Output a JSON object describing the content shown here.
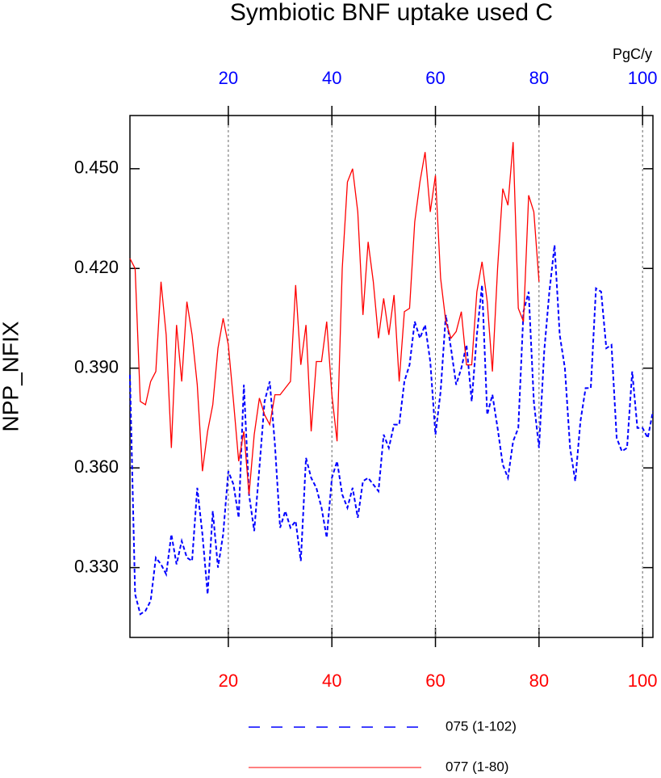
{
  "chart_data": {
    "type": "line",
    "title": "Symbiotic BNF uptake used C",
    "y_label": "NPP_NFIX",
    "ylim": [
      0.309,
      0.466
    ],
    "yticks": [
      {
        "value": 0.33,
        "label": "0.330"
      },
      {
        "value": 0.36,
        "label": "0.360"
      },
      {
        "value": 0.39,
        "label": "0.390"
      },
      {
        "value": 0.42,
        "label": "0.420"
      },
      {
        "value": 0.45,
        "label": "0.450"
      }
    ],
    "xlim": [
      1,
      102
    ],
    "x_axis_bottom": {
      "color": "#ff0000",
      "ticks": [
        20,
        40,
        60,
        80,
        100
      ]
    },
    "x_axis_top": {
      "color": "#0000ff",
      "ticks": [
        20,
        40,
        60,
        80,
        100
      ],
      "unit": "PgC/y"
    },
    "grid": true,
    "legend": "bottom",
    "series": [
      {
        "name": "075 (1-102)",
        "color": "#0000ff",
        "dash": true,
        "x": [
          1,
          2,
          3,
          4,
          5,
          6,
          7,
          8,
          9,
          10,
          11,
          12,
          13,
          14,
          15,
          16,
          17,
          18,
          19,
          20,
          21,
          22,
          23,
          24,
          25,
          26,
          27,
          28,
          29,
          30,
          31,
          32,
          33,
          34,
          35,
          36,
          37,
          38,
          39,
          40,
          41,
          42,
          43,
          44,
          45,
          46,
          47,
          48,
          49,
          50,
          51,
          52,
          53,
          54,
          55,
          56,
          57,
          58,
          59,
          60,
          61,
          62,
          63,
          64,
          65,
          66,
          67,
          68,
          69,
          70,
          71,
          72,
          73,
          74,
          75,
          76,
          77,
          78,
          79,
          80,
          81,
          82,
          83,
          84,
          85,
          86,
          87,
          88,
          89,
          90,
          91,
          92,
          93,
          94,
          95,
          96,
          97,
          98,
          99,
          100,
          101,
          102
        ],
        "values": [
          0.388,
          0.322,
          0.316,
          0.317,
          0.32,
          0.333,
          0.331,
          0.328,
          0.34,
          0.331,
          0.338,
          0.333,
          0.332,
          0.354,
          0.34,
          0.322,
          0.347,
          0.33,
          0.34,
          0.359,
          0.355,
          0.345,
          0.385,
          0.352,
          0.341,
          0.36,
          0.38,
          0.386,
          0.367,
          0.342,
          0.347,
          0.342,
          0.344,
          0.332,
          0.363,
          0.357,
          0.354,
          0.348,
          0.339,
          0.357,
          0.362,
          0.352,
          0.348,
          0.354,
          0.345,
          0.356,
          0.357,
          0.355,
          0.353,
          0.37,
          0.366,
          0.373,
          0.373,
          0.386,
          0.391,
          0.404,
          0.399,
          0.403,
          0.392,
          0.37,
          0.383,
          0.406,
          0.396,
          0.385,
          0.39,
          0.397,
          0.38,
          0.4,
          0.415,
          0.376,
          0.382,
          0.372,
          0.361,
          0.357,
          0.368,
          0.372,
          0.407,
          0.413,
          0.38,
          0.366,
          0.395,
          0.413,
          0.427,
          0.4,
          0.39,
          0.366,
          0.356,
          0.374,
          0.384,
          0.384,
          0.414,
          0.413,
          0.396,
          0.397,
          0.369,
          0.365,
          0.366,
          0.389,
          0.372,
          0.372,
          0.369,
          0.377
        ]
      },
      {
        "name": "077 (1-80)",
        "color": "#ff0000",
        "dash": false,
        "x": [
          1,
          2,
          3,
          4,
          5,
          6,
          7,
          8,
          9,
          10,
          11,
          12,
          13,
          14,
          15,
          16,
          17,
          18,
          19,
          20,
          21,
          22,
          23,
          24,
          25,
          26,
          27,
          28,
          29,
          30,
          31,
          32,
          33,
          34,
          35,
          36,
          37,
          38,
          39,
          40,
          41,
          42,
          43,
          44,
          45,
          46,
          47,
          48,
          49,
          50,
          51,
          52,
          53,
          54,
          55,
          56,
          57,
          58,
          59,
          60,
          61,
          62,
          63,
          64,
          65,
          66,
          67,
          68,
          69,
          70,
          71,
          72,
          73,
          74,
          75,
          76,
          77,
          78,
          79,
          80
        ],
        "values": [
          0.423,
          0.42,
          0.38,
          0.379,
          0.386,
          0.389,
          0.416,
          0.4,
          0.366,
          0.403,
          0.386,
          0.41,
          0.4,
          0.385,
          0.359,
          0.371,
          0.379,
          0.396,
          0.405,
          0.397,
          0.38,
          0.362,
          0.371,
          0.352,
          0.37,
          0.381,
          0.376,
          0.373,
          0.382,
          0.382,
          0.384,
          0.386,
          0.415,
          0.391,
          0.403,
          0.371,
          0.392,
          0.392,
          0.404,
          0.382,
          0.368,
          0.42,
          0.446,
          0.45,
          0.437,
          0.406,
          0.428,
          0.416,
          0.399,
          0.411,
          0.4,
          0.412,
          0.386,
          0.407,
          0.408,
          0.434,
          0.446,
          0.455,
          0.437,
          0.448,
          0.417,
          0.404,
          0.399,
          0.401,
          0.407,
          0.391,
          0.391,
          0.413,
          0.422,
          0.41,
          0.389,
          0.42,
          0.444,
          0.439,
          0.458,
          0.408,
          0.404,
          0.442,
          0.437,
          0.416
        ]
      }
    ]
  }
}
